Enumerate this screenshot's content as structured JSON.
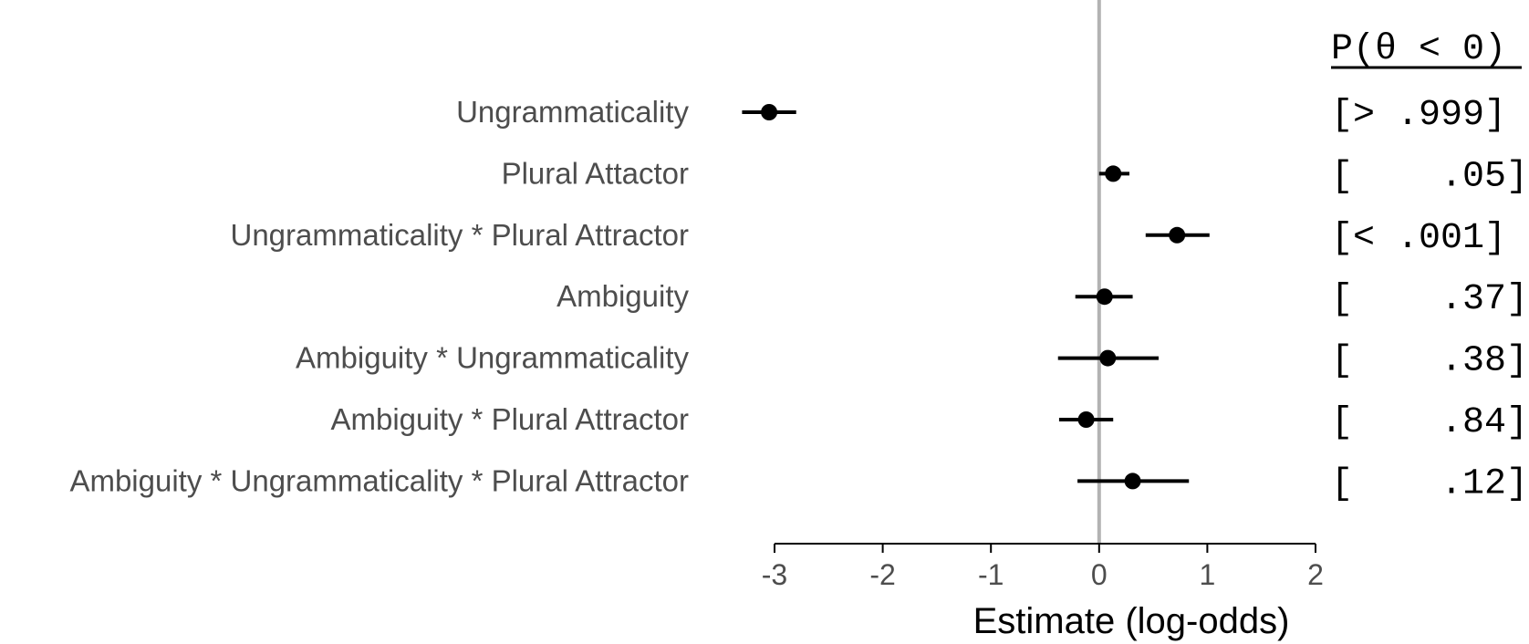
{
  "chart_data": {
    "type": "scatter",
    "xlabel": "Estimate (log-odds)",
    "xlim": [
      -3,
      2
    ],
    "xticks": [
      -3,
      -2,
      -1,
      0,
      1,
      2
    ],
    "xtick_labels": [
      "-3",
      "-2",
      "-1",
      "0",
      "1",
      "2"
    ],
    "reference_line": 0,
    "grid": false,
    "prob_header": "P(θ < 0)",
    "rows": [
      {
        "label": "Ungrammaticality",
        "estimate": -3.05,
        "lower": -3.3,
        "upper": -2.8,
        "prob": "[> .999]"
      },
      {
        "label": "Plural Attactor",
        "estimate": 0.13,
        "lower": 0.0,
        "upper": 0.28,
        "prob": "[    .05]"
      },
      {
        "label": "Ungrammaticality * Plural Attractor",
        "estimate": 0.72,
        "lower": 0.43,
        "upper": 1.02,
        "prob": "[< .001]"
      },
      {
        "label": "Ambiguity",
        "estimate": 0.05,
        "lower": -0.22,
        "upper": 0.31,
        "prob": "[    .37]"
      },
      {
        "label": "Ambiguity * Ungrammaticality",
        "estimate": 0.08,
        "lower": -0.38,
        "upper": 0.55,
        "prob": "[    .38]"
      },
      {
        "label": "Ambiguity * Plural Attractor",
        "estimate": -0.12,
        "lower": -0.37,
        "upper": 0.13,
        "prob": "[    .84]"
      },
      {
        "label": "Ambiguity * Ungrammaticality * Plural Attractor",
        "estimate": 0.31,
        "lower": -0.2,
        "upper": 0.83,
        "prob": "[    .12]"
      }
    ]
  },
  "colors": {
    "point": "#000000",
    "reference_line": "#b3b3b3",
    "axis": "#000000",
    "label": "#4d4d4d"
  }
}
